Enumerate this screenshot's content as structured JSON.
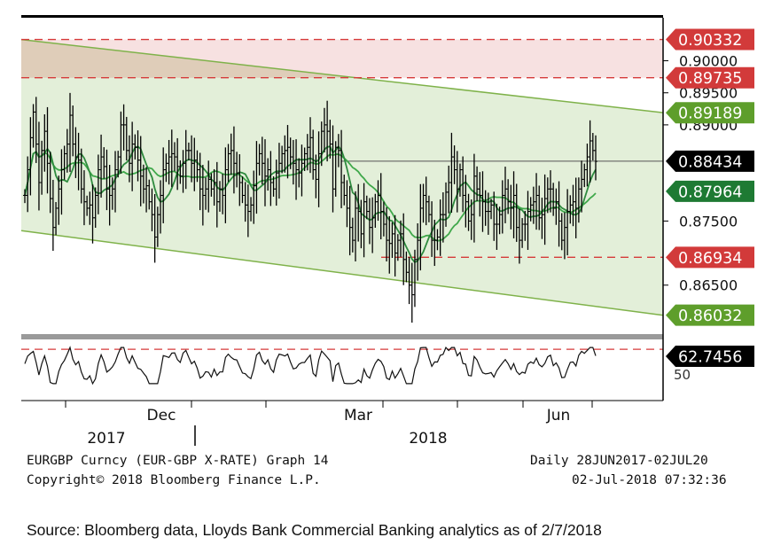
{
  "chart_data": [
    {
      "type": "ohlc",
      "instrument": "EURGBP Curncy (EUR-GBP X-RATE) Graph 14",
      "period": "Daily 28JUN2017-02JUL20",
      "copyright": "Copyright© 2018 Bloomberg Finance L.P.",
      "timestamp": "02-Jul-2018 07:32:36",
      "ylim": [
        0.8575,
        0.9045
      ],
      "x_month_labels": [
        "Dec",
        "Mar",
        "Jun"
      ],
      "x_year_labels": [
        "2017",
        "2018"
      ],
      "y_ticks": [
        "0.90000",
        "0.89500",
        "0.89000",
        "0.87500",
        "0.86500"
      ],
      "price_labels": [
        {
          "text": "0.90332",
          "value": 0.90332,
          "color": "#d23a3a"
        },
        {
          "text": "0.89735",
          "value": 0.89735,
          "color": "#d23a3a"
        },
        {
          "text": "0.89189",
          "value": 0.89189,
          "color": "#5e9e2b"
        },
        {
          "text": "0.88434",
          "value": 0.88434,
          "color": "#000000"
        },
        {
          "text": "0.87964",
          "value": 0.87964,
          "color": "#1e7a33"
        },
        {
          "text": "0.86934",
          "value": 0.86934,
          "color": "#d23a3a"
        },
        {
          "text": "0.86032",
          "value": 0.86032,
          "color": "#5e9e2b"
        }
      ],
      "resistance_zone": [
        0.89735,
        0.90332
      ],
      "support_line": 0.86934,
      "last_price": 0.88434,
      "channel": {
        "upper_start": 0.9033,
        "upper_end": 0.8919,
        "lower_start": 0.8735,
        "lower_end": 0.8603
      },
      "close": [
        0.879,
        0.883,
        0.888,
        0.892,
        0.887,
        0.881,
        0.886,
        0.889,
        0.884,
        0.8785,
        0.874,
        0.877,
        0.88,
        0.883,
        0.8855,
        0.887,
        0.8915,
        0.887,
        0.885,
        0.8845,
        0.88,
        0.878,
        0.877,
        0.8775,
        0.8755,
        0.879,
        0.883,
        0.885,
        0.8835,
        0.88,
        0.879,
        0.88,
        0.883,
        0.885,
        0.89,
        0.89,
        0.886,
        0.884,
        0.887,
        0.8865,
        0.8845,
        0.882,
        0.88,
        0.8805,
        0.878,
        0.876,
        0.8725,
        0.876,
        0.879,
        0.883,
        0.884,
        0.885,
        0.8855,
        0.885,
        0.8835,
        0.882,
        0.884,
        0.886,
        0.886,
        0.884,
        0.8845,
        0.883,
        0.88,
        0.879,
        0.88,
        0.8815,
        0.88,
        0.881,
        0.878,
        0.88,
        0.879,
        0.883,
        0.8855,
        0.886,
        0.884,
        0.8825,
        0.881,
        0.879,
        0.8775,
        0.8765,
        0.8775,
        0.8805,
        0.884,
        0.8855,
        0.884,
        0.882,
        0.883,
        0.881,
        0.88,
        0.8825,
        0.884,
        0.8855,
        0.886,
        0.8865,
        0.885,
        0.884,
        0.883,
        0.8825,
        0.884,
        0.8855,
        0.8865,
        0.888,
        0.883,
        0.8815,
        0.8855,
        0.889,
        0.89,
        0.889,
        0.887,
        0.88,
        0.8865,
        0.886,
        0.881,
        0.879,
        0.877,
        0.874,
        0.872,
        0.877,
        0.8765,
        0.873,
        0.878,
        0.8765,
        0.874,
        0.8755,
        0.878,
        0.879,
        0.8765,
        0.8745,
        0.872,
        0.8715,
        0.873,
        0.87,
        0.872,
        0.873,
        0.869,
        0.867,
        0.865,
        0.8635,
        0.869,
        0.872,
        0.877,
        0.879,
        0.878,
        0.876,
        0.872,
        0.872,
        0.8725,
        0.876,
        0.876,
        0.8795,
        0.881,
        0.885,
        0.883,
        0.88,
        0.883,
        0.879,
        0.878,
        0.875,
        0.876,
        0.882,
        0.88,
        0.879,
        0.878,
        0.8765,
        0.8765,
        0.8775,
        0.8745,
        0.8745,
        0.876,
        0.879,
        0.88,
        0.878,
        0.877,
        0.879,
        0.874,
        0.872,
        0.8745,
        0.8745,
        0.8765,
        0.8775,
        0.878,
        0.879,
        0.8755,
        0.876,
        0.8785,
        0.88,
        0.88,
        0.877,
        0.878,
        0.875,
        0.872,
        0.874,
        0.8765,
        0.8775,
        0.878,
        0.877,
        0.88,
        0.8815,
        0.883,
        0.885,
        0.8875,
        0.886,
        0.8843
      ],
      "oscillator": {
        "value_label": "62.7456",
        "value": 62.7456,
        "tick_label": "50",
        "overbought_level": 70
      }
    }
  ],
  "footer": {
    "line1_left": "EURGBP Curncy (EUR-GBP X-RATE) Graph 14",
    "line1_right": "Daily 28JUN2017-02JUL20",
    "line2_left": "Copyright© 2018 Bloomberg Finance L.P.",
    "line2_right": "02-Jul-2018 07:32:36"
  },
  "source": "Source: Bloomberg data, Lloyds Bank Commercial Banking analytics as of 2/7/2018",
  "colors": {
    "channel_fill": "#e3efd9",
    "channel_line": "#7fb24a",
    "zone_fill": "#f6dcdc",
    "dashed_red": "#d63a3a",
    "ma_fast": "#2e8b3e",
    "ma_slow": "#3fa84a"
  }
}
